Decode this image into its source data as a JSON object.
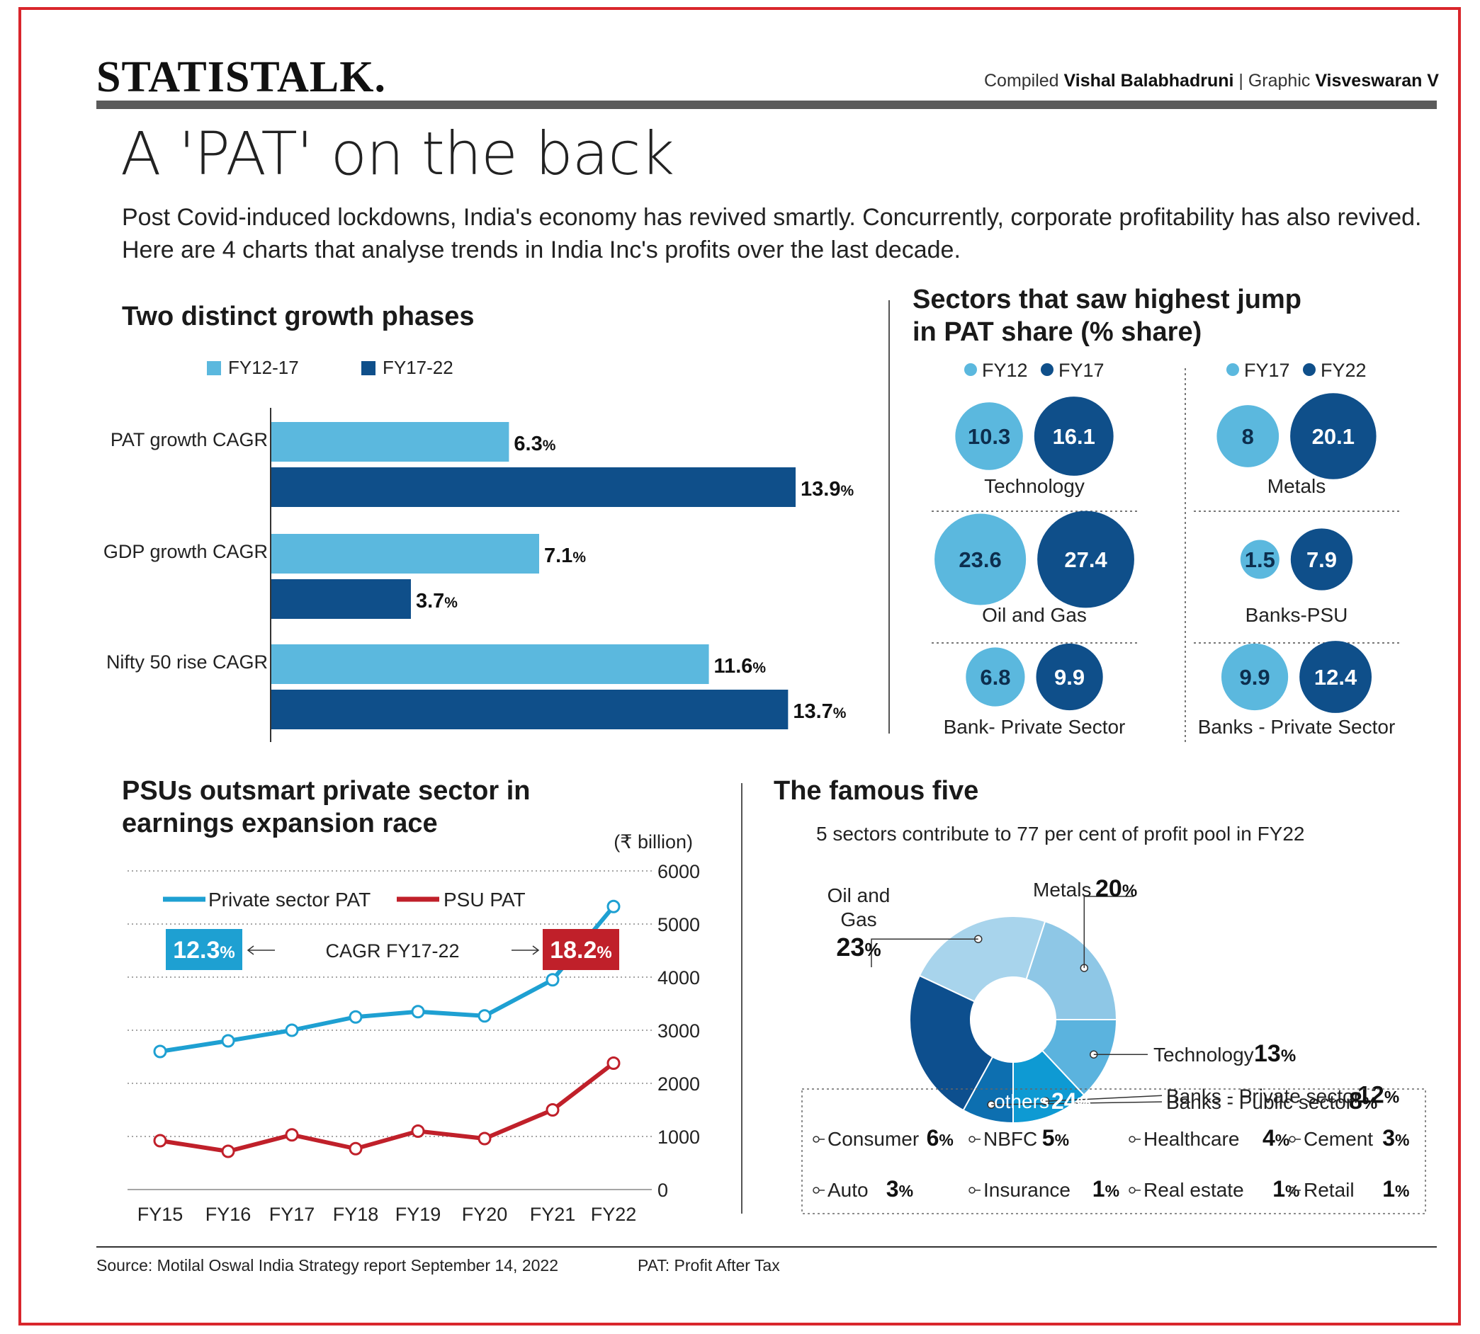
{
  "header": {
    "brand": "STATISTALK.",
    "compiled_prefix": "Compiled",
    "compiled_name": "Vishal Balabhadruni",
    "graphic_prefix": "| Graphic",
    "graphic_name": "Visveswaran V",
    "headline": "A 'PAT' on the back",
    "intro": "Post Covid-induced lockdowns, India's economy has revived smartly. Concurrently, corporate profitability has also revived. Here are 4 charts that analyse trends in India Inc's profits over the last decade."
  },
  "colors": {
    "light_blue": "#5bb8de",
    "dark_blue": "#0f4f8a",
    "psu_red": "#c0202a",
    "private_line": "#1ea0d2",
    "frame_red": "#d9262c"
  },
  "footer": {
    "source": "Source: Motilal Oswal India Strategy report September 14, 2022",
    "pat_note": "PAT: Profit After Tax"
  },
  "chart_data": [
    {
      "type": "bar",
      "title": "Two distinct growth phases",
      "categories": [
        "PAT growth CAGR",
        "GDP growth CAGR",
        "Nifty 50 rise CAGR"
      ],
      "series": [
        {
          "name": "FY12-17",
          "values": [
            6.3,
            7.1,
            11.6
          ],
          "labels": [
            "6.3%",
            "7.1%",
            "11.6%"
          ]
        },
        {
          "name": "FY17-22",
          "values": [
            13.9,
            3.7,
            13.7
          ],
          "labels": [
            "13.9%",
            "3.7%",
            "13.7%"
          ]
        }
      ],
      "orientation": "horizontal",
      "unit": "%"
    },
    {
      "type": "bubble",
      "title": "Sectors that saw highest jump in PAT share (% share)",
      "panels": [
        {
          "legend": [
            "FY12",
            "FY17"
          ],
          "items": [
            {
              "sector": "Technology",
              "values": [
                10.3,
                16.1
              ],
              "labels": [
                "10.3",
                "16.1"
              ]
            },
            {
              "sector": "Oil and Gas",
              "values": [
                23.6,
                27.4
              ],
              "labels": [
                "23.6",
                "27.4"
              ]
            },
            {
              "sector": "Bank- Private Sector",
              "values": [
                6.8,
                9.9
              ],
              "labels": [
                "6.8",
                "9.9"
              ]
            }
          ]
        },
        {
          "legend": [
            "FY17",
            "FY22"
          ],
          "items": [
            {
              "sector": "Metals",
              "values": [
                8,
                20.1
              ],
              "labels": [
                "8",
                "20.1"
              ]
            },
            {
              "sector": "Banks-PSU",
              "values": [
                1.5,
                7.9
              ],
              "labels": [
                "1.5",
                "7.9"
              ]
            },
            {
              "sector": "Banks - Private Sector",
              "values": [
                9.9,
                12.4
              ],
              "labels": [
                "9.9",
                "12.4"
              ]
            }
          ]
        }
      ]
    },
    {
      "type": "line",
      "title": "PSUs outsmart private sector in earnings expansion race",
      "unit_label": "(₹ billion)",
      "x": [
        "FY15",
        "FY16",
        "FY17",
        "FY18",
        "FY19",
        "FY20",
        "FY21",
        "FY22"
      ],
      "series": [
        {
          "name": "Private sector PAT",
          "values": [
            2600,
            2800,
            3000,
            3250,
            3350,
            3270,
            3950,
            5330
          ]
        },
        {
          "name": "PSU PAT",
          "values": [
            920,
            720,
            1030,
            770,
            1100,
            960,
            1500,
            2380
          ]
        }
      ],
      "ylim": [
        0,
        6000
      ],
      "yticks": [
        "6000",
        "5000",
        "4000",
        "3000",
        "2000",
        "1000",
        "0"
      ],
      "cagr_label": "CAGR FY17-22",
      "cagr_private": "12.3%",
      "cagr_psu": "18.2%",
      "legend_position": "top-left"
    },
    {
      "type": "pie",
      "title": "The famous five",
      "subtitle": "5 sectors contribute to 77 per cent of profit pool in FY22",
      "slices": [
        {
          "label": "Metals",
          "value": 20,
          "pct": "20%",
          "color": "#8ec7e6"
        },
        {
          "label": "Technology",
          "value": 13,
          "pct": "13%",
          "color": "#5bb3de"
        },
        {
          "label": "Banks - Private sector",
          "value": 12,
          "pct": "12%",
          "color": "#0e9ad3"
        },
        {
          "label": "Banks - Public sector",
          "value": 8,
          "pct": "8%",
          "color": "#0d6fb0"
        },
        {
          "label": "others",
          "value": 24,
          "pct": "24%",
          "color": "#0d4f8e"
        },
        {
          "label": "Oil and Gas",
          "value": 23,
          "pct": "23%",
          "color": "#a8d4ec"
        }
      ],
      "others_breakdown": [
        {
          "label": "Consumer",
          "pct": "6%"
        },
        {
          "label": "NBFC",
          "pct": "5%"
        },
        {
          "label": "Healthcare",
          "pct": "4%"
        },
        {
          "label": "Cement",
          "pct": "3%"
        },
        {
          "label": "Auto",
          "pct": "3%"
        },
        {
          "label": "Insurance",
          "pct": "1%"
        },
        {
          "label": "Real estate",
          "pct": "1%"
        },
        {
          "label": "Retail",
          "pct": "1%"
        }
      ]
    }
  ]
}
